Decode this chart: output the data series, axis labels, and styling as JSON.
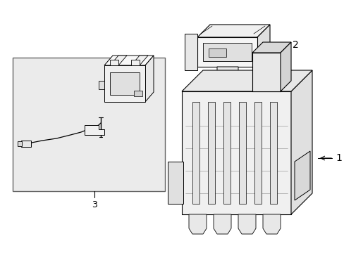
{
  "bg_color": "#ffffff",
  "line_color": "#000000",
  "box_bg": "#ebebeb",
  "fig_width": 4.89,
  "fig_height": 3.6,
  "dpi": 100,
  "label_1": "1",
  "label_2": "2",
  "label_3": "3"
}
